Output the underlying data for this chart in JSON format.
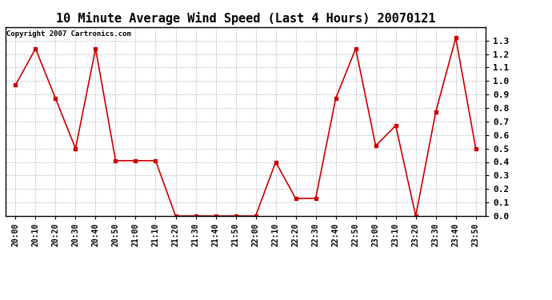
{
  "title": "10 Minute Average Wind Speed (Last 4 Hours) 20070121",
  "copyright": "Copyright 2007 Cartronics.com",
  "x_labels": [
    "20:00",
    "20:10",
    "20:20",
    "20:30",
    "20:40",
    "20:50",
    "21:00",
    "21:10",
    "21:20",
    "21:30",
    "21:40",
    "21:50",
    "22:00",
    "22:10",
    "22:20",
    "22:30",
    "22:40",
    "22:50",
    "23:00",
    "23:10",
    "23:20",
    "23:30",
    "23:40",
    "23:50"
  ],
  "y_values": [
    0.97,
    1.24,
    0.87,
    0.5,
    1.24,
    0.41,
    0.41,
    0.41,
    0.0,
    0.0,
    0.0,
    0.0,
    0.0,
    0.4,
    0.13,
    0.13,
    0.87,
    1.24,
    0.52,
    0.67,
    0.0,
    0.77,
    1.32,
    0.5
  ],
  "line_color": "#cc0000",
  "marker": "s",
  "marker_size": 2.5,
  "line_width": 1.2,
  "bg_color": "#ffffff",
  "grid_color": "#aaaaaa",
  "ylim": [
    0.0,
    1.4
  ],
  "yticks": [
    0.0,
    0.1,
    0.2,
    0.3,
    0.4,
    0.5,
    0.6,
    0.7,
    0.8,
    0.9,
    1.0,
    1.1,
    1.2,
    1.3
  ],
  "title_fontsize": 11,
  "copyright_fontsize": 6.5,
  "tick_fontsize": 7,
  "ytick_fontsize": 8
}
